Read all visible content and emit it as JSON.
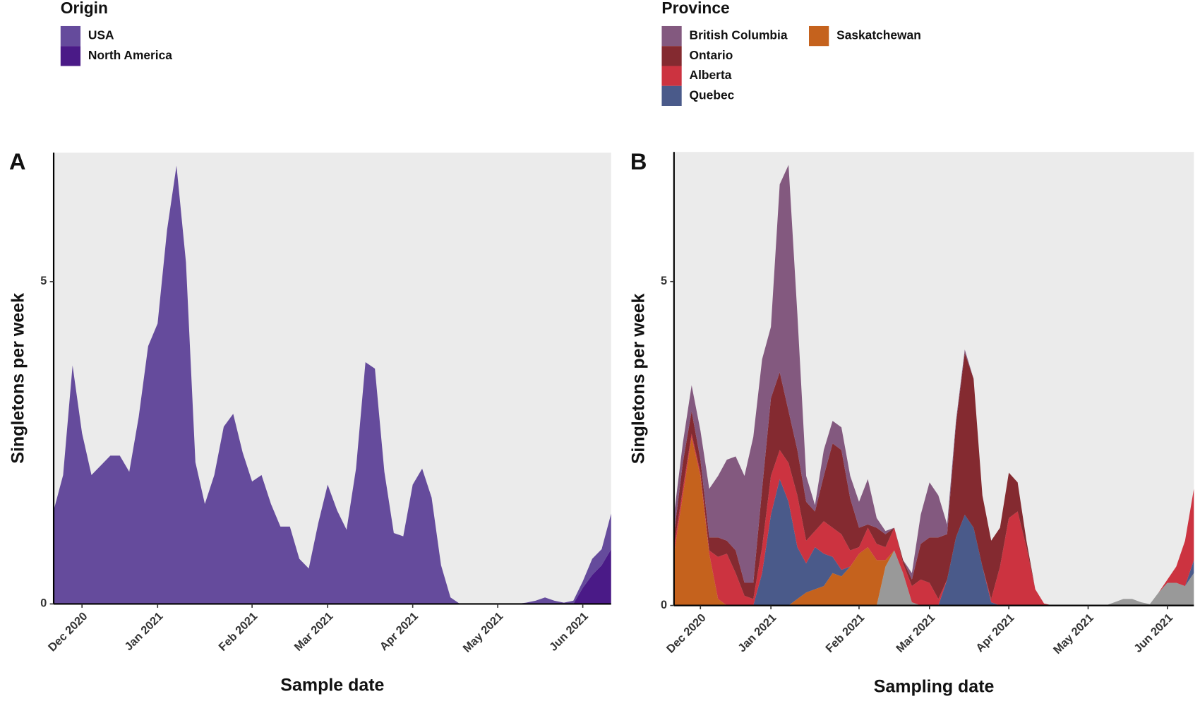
{
  "chart_data": [
    {
      "type": "area",
      "stacked": true,
      "panel_label": "A",
      "legend_title": "Origin",
      "x_label": "Sample date",
      "y_label": "Singletons per week",
      "categories": [
        null,
        null,
        null,
        "Dec 2020",
        null,
        null,
        null,
        null,
        null,
        null,
        null,
        "Jan 2021",
        null,
        null,
        null,
        null,
        null,
        null,
        null,
        null,
        null,
        "Feb 2021",
        null,
        null,
        null,
        null,
        null,
        null,
        null,
        "Mar 2021",
        null,
        null,
        null,
        null,
        null,
        null,
        null,
        null,
        "Apr 2021",
        null,
        null,
        null,
        null,
        null,
        null,
        null,
        null,
        "May 2021",
        null,
        null,
        null,
        null,
        null,
        null,
        null,
        null,
        "Jun 2021",
        null,
        null,
        null
      ],
      "series": [
        {
          "name": "North America",
          "color": "#4a1a87",
          "values": [
            0,
            0,
            0,
            0,
            0,
            0,
            0,
            0,
            0,
            0,
            0,
            0,
            0,
            0,
            0,
            0,
            0,
            0,
            0,
            0,
            0,
            0,
            0,
            0,
            0,
            0,
            0,
            0,
            0,
            0,
            0,
            0,
            0,
            0,
            0,
            0,
            0,
            0,
            0,
            0,
            0,
            0,
            0,
            0,
            0,
            0,
            0,
            0,
            0,
            0,
            0,
            0,
            0,
            0,
            0,
            0,
            0.25,
            0.45,
            0.6,
            0.85
          ]
        },
        {
          "name": "USA",
          "color": "#654b9c",
          "values": [
            1.45,
            2.0,
            3.7,
            2.65,
            2.0,
            2.15,
            2.3,
            2.3,
            2.05,
            2.9,
            4.0,
            4.35,
            5.8,
            6.8,
            5.3,
            2.2,
            1.55,
            2.0,
            2.75,
            2.95,
            2.35,
            1.9,
            2.0,
            1.55,
            1.2,
            1.2,
            0.7,
            0.55,
            1.25,
            1.85,
            1.45,
            1.15,
            2.1,
            3.75,
            3.65,
            2.05,
            1.1,
            1.05,
            1.85,
            2.1,
            1.65,
            0.6,
            0.1,
            0,
            0,
            0,
            0,
            0,
            0,
            0,
            0.02,
            0.05,
            0.1,
            0.05,
            0.02,
            0.05,
            0.1,
            0.25,
            0.25,
            0.55
          ]
        }
      ],
      "ylim": [
        0,
        7
      ],
      "yticks": [
        0,
        5
      ],
      "background": "#ebebeb"
    },
    {
      "type": "area",
      "stacked": true,
      "panel_label": "B",
      "legend_title": "Province",
      "x_label": "Sampling date",
      "y_label": "Singletons per week",
      "categories": [
        null,
        null,
        null,
        "Dec 2020",
        null,
        null,
        null,
        null,
        null,
        null,
        null,
        "Jan 2021",
        null,
        null,
        null,
        null,
        null,
        null,
        null,
        null,
        null,
        "Feb 2021",
        null,
        null,
        null,
        null,
        null,
        null,
        null,
        "Mar 2021",
        null,
        null,
        null,
        null,
        null,
        null,
        null,
        null,
        "Apr 2021",
        null,
        null,
        null,
        null,
        null,
        null,
        null,
        null,
        "May 2021",
        null,
        null,
        null,
        null,
        null,
        null,
        null,
        null,
        "Jun 2021",
        null,
        null,
        null
      ],
      "series": [
        {
          "color": "#999999",
          "values": [
            0,
            0,
            0,
            0,
            0,
            0,
            0,
            0,
            0,
            0,
            0,
            0,
            0,
            0,
            0,
            0,
            0,
            0,
            0,
            0,
            0,
            0,
            0,
            0,
            0.6,
            0.85,
            0.5,
            0.05,
            0,
            0,
            0,
            0,
            0,
            0,
            0,
            0,
            0,
            0,
            0,
            0,
            0,
            0,
            0,
            0,
            0,
            0,
            0,
            0,
            0,
            0,
            0.05,
            0.1,
            0.1,
            0.05,
            0.02,
            0.2,
            0.35,
            0.35,
            0.3,
            0.5
          ]
        },
        {
          "name": "Saskatchewan",
          "color": "#c5621d",
          "values": [
            0.8,
            1.7,
            2.6,
            2.0,
            0.8,
            0.1,
            0,
            0,
            0,
            0,
            0,
            0,
            0,
            0,
            0.1,
            0.2,
            0.25,
            0.3,
            0.5,
            0.45,
            0.6,
            0.8,
            0.9,
            0.7,
            0.1,
            0,
            0,
            0,
            0,
            0,
            0,
            0,
            0,
            0,
            0,
            0,
            0,
            0,
            0,
            0,
            0,
            0,
            0,
            0,
            0,
            0,
            0,
            0,
            0,
            0,
            0,
            0,
            0,
            0,
            0,
            0,
            0,
            0,
            0,
            0
          ]
        },
        {
          "name": "Quebec",
          "color": "#4a5a8a",
          "values": [
            0,
            0,
            0,
            0,
            0,
            0,
            0,
            0,
            0,
            0,
            0.5,
            1.4,
            1.95,
            1.6,
            0.8,
            0.45,
            0.65,
            0.5,
            0.25,
            0.1,
            0,
            0,
            0,
            0,
            0,
            0,
            0,
            0,
            0,
            0,
            0,
            0.4,
            1.05,
            1.4,
            1.2,
            0.6,
            0.05,
            0,
            0,
            0,
            0,
            0,
            0,
            0,
            0,
            0,
            0,
            0,
            0,
            0,
            0,
            0,
            0,
            0,
            0,
            0,
            0,
            0,
            0,
            0.2
          ]
        },
        {
          "name": "Alberta",
          "color": "#cc3340",
          "values": [
            0.1,
            0.1,
            0.05,
            0.05,
            0.05,
            0.65,
            0.8,
            0.5,
            0.15,
            0.1,
            0.4,
            0.6,
            0.45,
            0.6,
            0.8,
            0.35,
            0.25,
            0.5,
            0.45,
            0.55,
            0.25,
            0.1,
            0.3,
            0.25,
            0.2,
            0.35,
            0.15,
            0.25,
            0.4,
            0.35,
            0.1,
            0,
            0,
            0,
            0,
            0,
            0.05,
            0.6,
            1.35,
            1.45,
            0.9,
            0.25,
            0.03,
            0,
            0,
            0,
            0,
            0,
            0,
            0,
            0,
            0,
            0,
            0,
            0,
            0,
            0.05,
            0.25,
            0.7,
            1.1
          ]
        },
        {
          "name": "Ontario",
          "color": "#842a30",
          "values": [
            0.2,
            0.4,
            0.35,
            0.2,
            0.2,
            0.3,
            0.2,
            0.35,
            0.2,
            0.25,
            0.9,
            1.2,
            1.2,
            0.8,
            0.7,
            0.6,
            0.3,
            0.7,
            1.3,
            1.3,
            0.8,
            0.3,
            0.05,
            0.25,
            0.2,
            0,
            0.05,
            0.1,
            0.55,
            0.7,
            0.95,
            0.7,
            1.75,
            2.5,
            2.3,
            1.1,
            0.9,
            0.6,
            0.7,
            0.45,
            0.1,
            0,
            0,
            0,
            0,
            0,
            0,
            0,
            0,
            0,
            0,
            0,
            0,
            0,
            0,
            0,
            0,
            0,
            0,
            0
          ]
        },
        {
          "name": "British Columbia",
          "color": "#83597f",
          "values": [
            0.3,
            0.3,
            0.4,
            0.45,
            0.75,
            0.95,
            1.25,
            1.45,
            1.65,
            2.25,
            2.0,
            1.1,
            2.9,
            3.8,
            2.1,
            0.4,
            0.1,
            0.4,
            0.35,
            0.35,
            0.35,
            0.4,
            0.7,
            0.15,
            0.05,
            0,
            0,
            0.1,
            0.45,
            0.85,
            0.65,
            0.15,
            0.05,
            0.05,
            0,
            0,
            0,
            0,
            0,
            0,
            0,
            0,
            0,
            0,
            0,
            0,
            0,
            0,
            0,
            0,
            0,
            0,
            0,
            0,
            0,
            0,
            0,
            0,
            0,
            0
          ]
        }
      ],
      "ylim": [
        0,
        7
      ],
      "yticks": [
        0,
        5
      ],
      "background": "#ebebeb"
    }
  ]
}
